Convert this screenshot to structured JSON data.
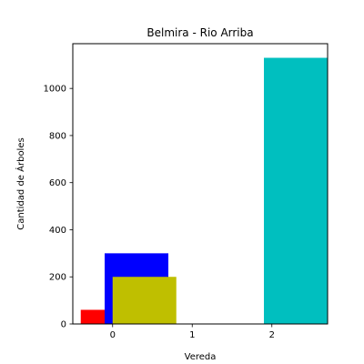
{
  "chart_data": {
    "type": "bar",
    "title": "Belmira - Rio Arriba",
    "xlabel": "Vereda",
    "ylabel": "Cantidad de Árboles",
    "xlim": [
      -0.5,
      2.7
    ],
    "ylim": [
      0,
      1190
    ],
    "x_ticks": [
      0,
      1,
      2
    ],
    "x_tick_labels": [
      "0",
      "1",
      "2"
    ],
    "y_ticks": [
      0,
      200,
      400,
      600,
      800,
      1000
    ],
    "y_tick_labels": [
      "0",
      "200",
      "400",
      "600",
      "800",
      "1000"
    ],
    "grid": false,
    "legend": "none",
    "bars": [
      {
        "x_start": -0.4,
        "x_end": 0.4,
        "value": 60,
        "color": "#ff0000"
      },
      {
        "x_start": -0.1,
        "x_end": 0.7,
        "value": 300,
        "color": "#0000ff"
      },
      {
        "x_start": 0.0,
        "x_end": 0.8,
        "value": 200,
        "color": "#bfbf00"
      },
      {
        "x_start": 1.9,
        "x_end": 2.7,
        "value": 1130,
        "color": "#00bfbf"
      }
    ]
  }
}
